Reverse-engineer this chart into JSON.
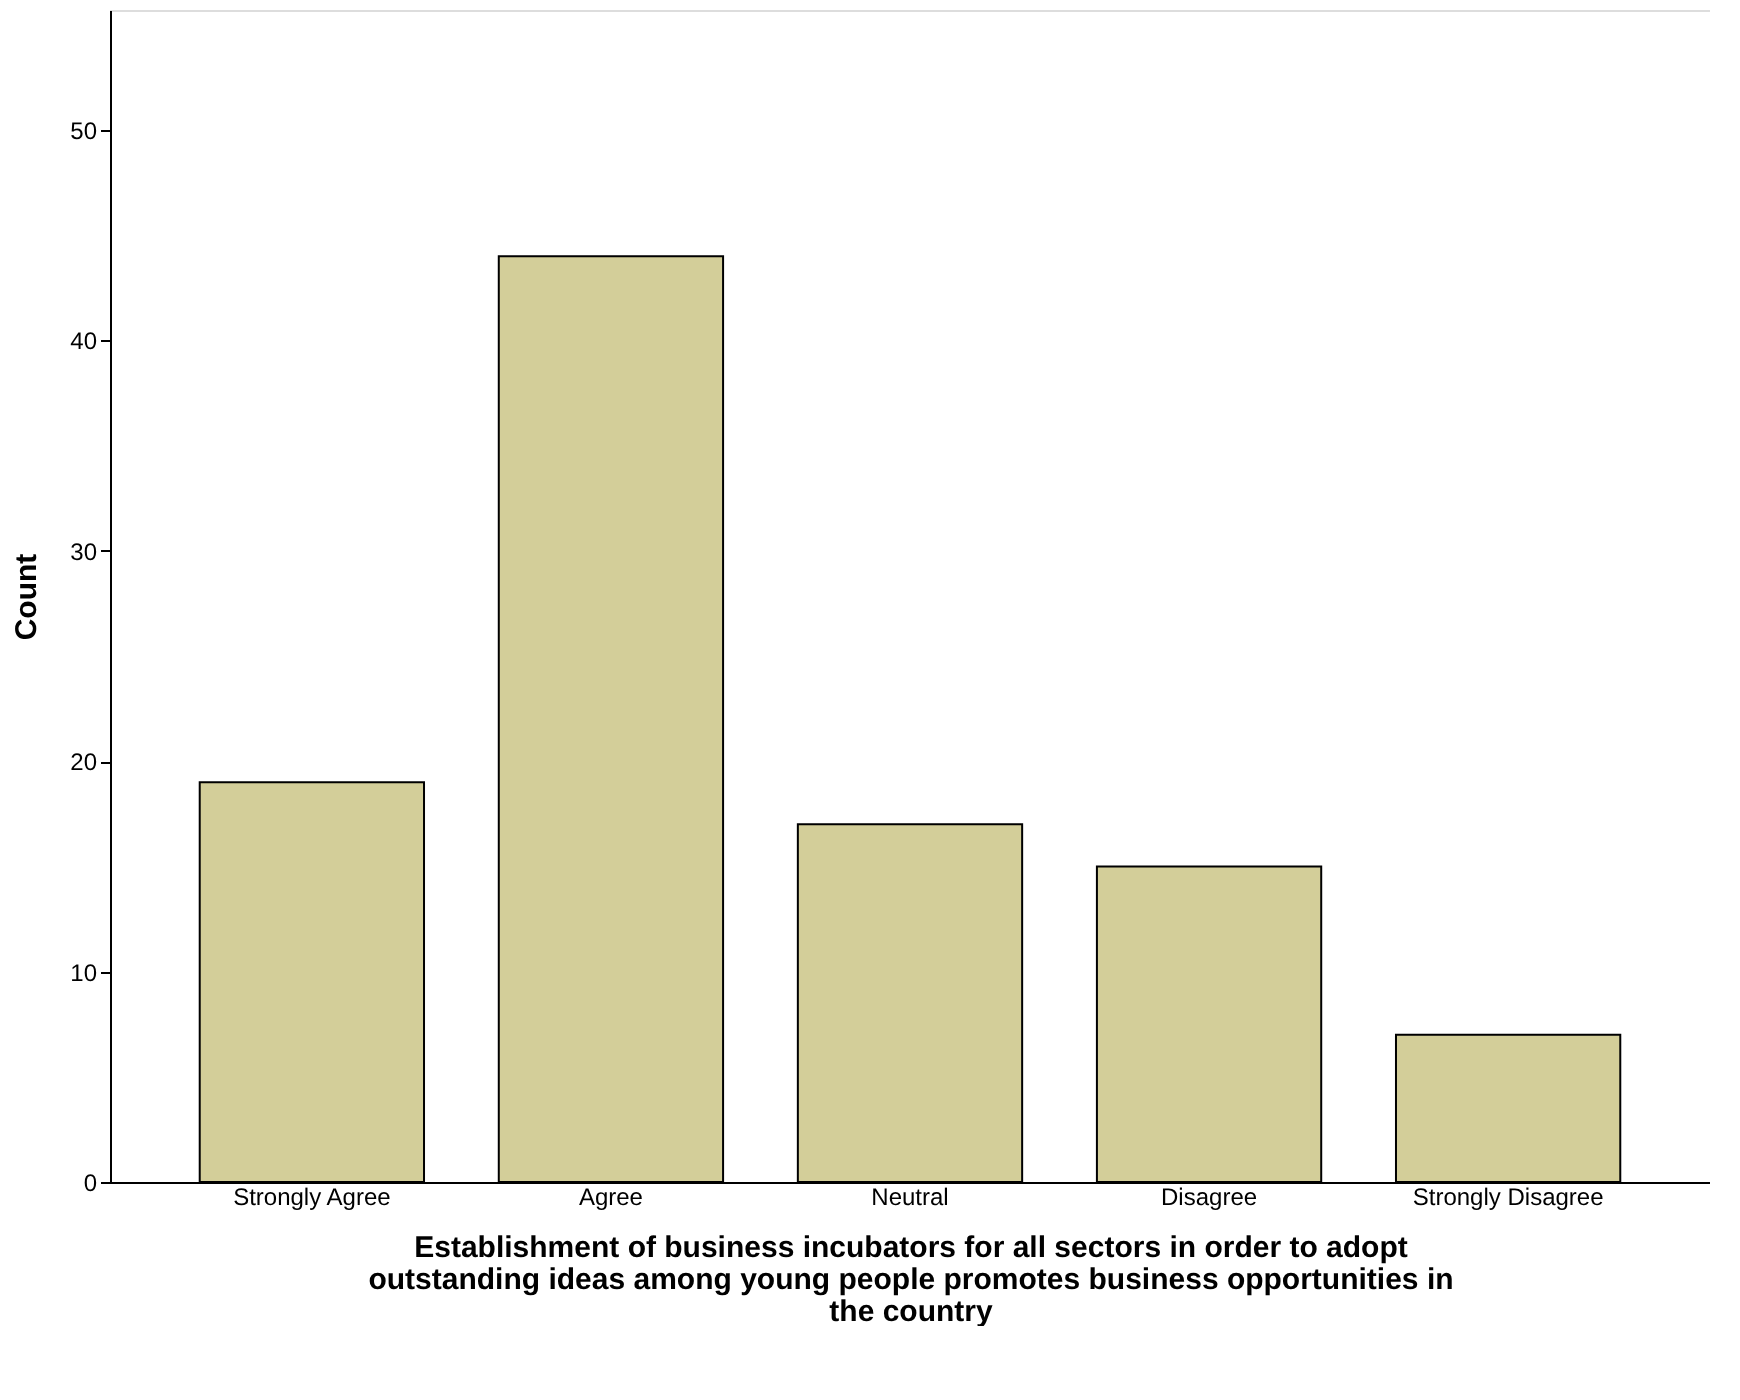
{
  "chart_data": {
    "type": "bar",
    "categories": [
      "Strongly Agree",
      "Agree",
      "Neutral",
      "Disagree",
      "Strongly Disagree"
    ],
    "values": [
      19,
      44,
      17,
      15,
      7
    ],
    "color": "#d3ce99",
    "xlabel": "Establishment of business incubators for all sectors in order to adopt outstanding ideas among young people promotes business opportunities in the country",
    "ylabel": "Count",
    "ylim": [
      0,
      55.7
    ],
    "yticks": [
      0,
      10,
      20,
      30,
      40,
      50
    ],
    "grid": false
  }
}
